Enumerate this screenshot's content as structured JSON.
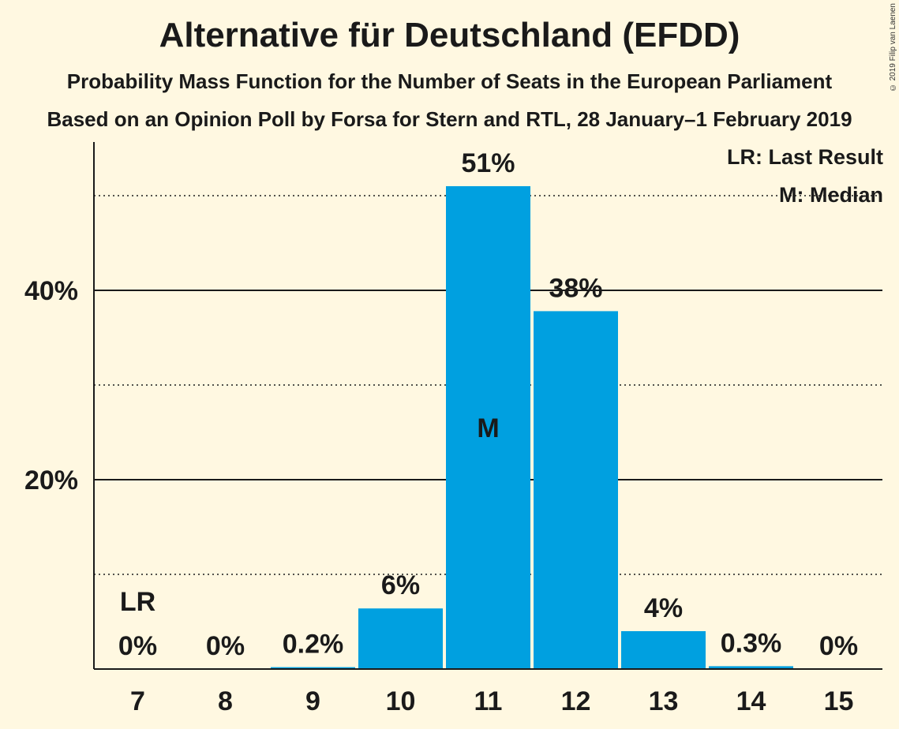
{
  "chart_data": {
    "type": "bar",
    "title": "Alternative für Deutschland (EFDD)",
    "subtitle1": "Probability Mass Function for the Number of Seats in the European Parliament",
    "subtitle2": "Based on an Opinion Poll by Forsa for Stern and RTL, 28 January–1 February 2019",
    "copyright": "© 2019 Filip van Laenen",
    "categories": [
      "7",
      "8",
      "9",
      "10",
      "11",
      "12",
      "13",
      "14",
      "15"
    ],
    "values": [
      0,
      0,
      0.2,
      6.4,
      51,
      37.8,
      4,
      0.3,
      0
    ],
    "value_labels": [
      "0%",
      "0%",
      "0.2%",
      "6%",
      "51%",
      "38%",
      "4%",
      "0.3%",
      "0%"
    ],
    "y_ticks": [
      {
        "value": 20,
        "label": "20%"
      },
      {
        "value": 40,
        "label": "40%"
      }
    ],
    "y_dotted_lines": [
      10,
      30,
      50
    ],
    "ylim": [
      0,
      55
    ],
    "last_result_category": "7",
    "last_result_marker": "LR",
    "median_category": "11",
    "median_marker": "M",
    "legend": {
      "last_result": "LR: Last Result",
      "median": "M: Median"
    },
    "colors": {
      "bar": "#00a0e0",
      "background": "#fff8e1",
      "text": "#1a1a1a"
    }
  }
}
